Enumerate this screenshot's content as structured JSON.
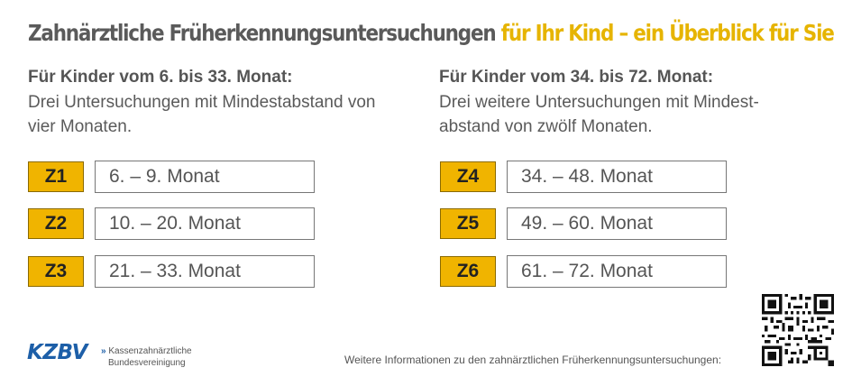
{
  "title": {
    "part1": "Zahnärztliche Früherkennungsuntersuchungen",
    "part2": "für Ihr Kind – ein Überblick für Sie"
  },
  "left_section": {
    "heading": "Für Kinder vom 6. bis 33. Monat:",
    "description": "Drei Untersuchungen mit Mindestabstand von vier Monaten.",
    "rows": [
      {
        "code": "Z1",
        "range": "6. – 9. Monat"
      },
      {
        "code": "Z2",
        "range": "10. – 20. Monat"
      },
      {
        "code": "Z3",
        "range": "21. – 33. Monat"
      }
    ]
  },
  "right_section": {
    "heading": "Für Kinder vom 34. bis 72. Monat:",
    "description": "Drei weitere Untersuchungen mit Mindest-abstand von zwölf Monaten.",
    "rows": [
      {
        "code": "Z4",
        "range": "34. – 48. Monat"
      },
      {
        "code": "Z5",
        "range": "49. – 60. Monat"
      },
      {
        "code": "Z6",
        "range": "61. – 72. Monat"
      }
    ]
  },
  "logo": {
    "name": "KZBV",
    "arrow": "»",
    "sub_line1": "Kassenzahnärztliche",
    "sub_line2": "Bundesvereinigung"
  },
  "footer": {
    "info_text": "Weitere Informationen zu den zahnärztlichen Früherkennungsuntersuchungen:"
  },
  "colors": {
    "accent_yellow": "#f0b400",
    "title_yellow": "#e6b400",
    "brand_blue": "#1d5fa8",
    "text_gray": "#555555"
  }
}
